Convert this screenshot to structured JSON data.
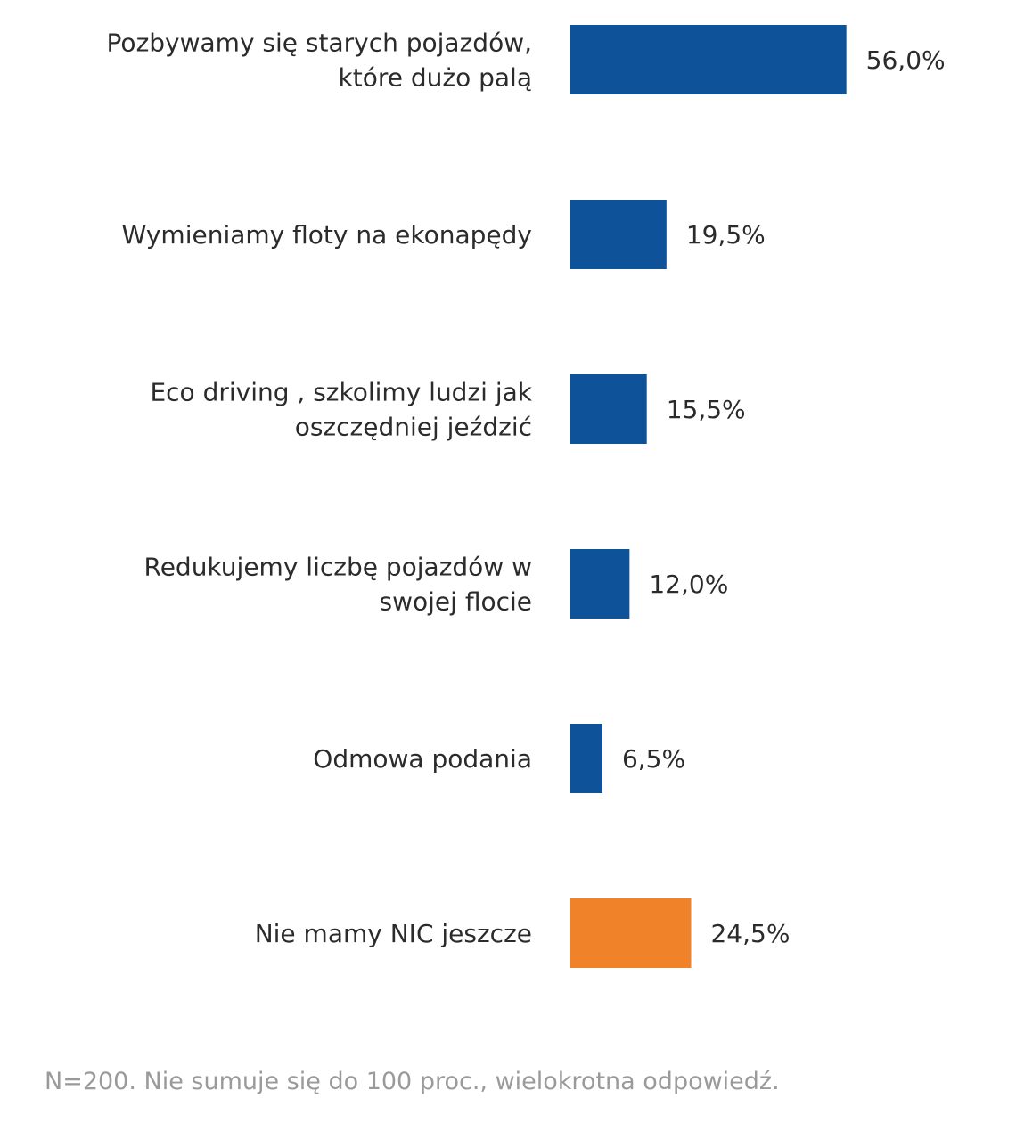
{
  "chart_data": {
    "type": "bar",
    "orientation": "horizontal",
    "categories": [
      [
        "Pozbywamy się starych pojazdów,",
        "które dużo palą"
      ],
      [
        "Wymieniamy floty na ekonapędy"
      ],
      [
        "Eco driving , szkolimy ludzi jak",
        "oszczędniej jeździć"
      ],
      [
        "Redukujemy liczbę pojazdów w",
        "swojej flocie"
      ],
      [
        "Odmowa podania"
      ],
      [
        "Nie mamy NIC jeszcze"
      ]
    ],
    "values": [
      56.0,
      19.5,
      15.5,
      12.0,
      6.5,
      24.5
    ],
    "value_labels": [
      "56,0%",
      "19,5%",
      "15,5%",
      "12,0%",
      "6,5%",
      "24,5%"
    ],
    "bar_colors": [
      "#0e5299",
      "#0e5299",
      "#0e5299",
      "#0e5299",
      "#0e5299",
      "#f0822a"
    ],
    "xlim": [
      0,
      100
    ],
    "grid": false,
    "legend": "none"
  },
  "footnote": "N=200. Nie sumuje się do 100 proc., wielokrotna odpowiedź."
}
